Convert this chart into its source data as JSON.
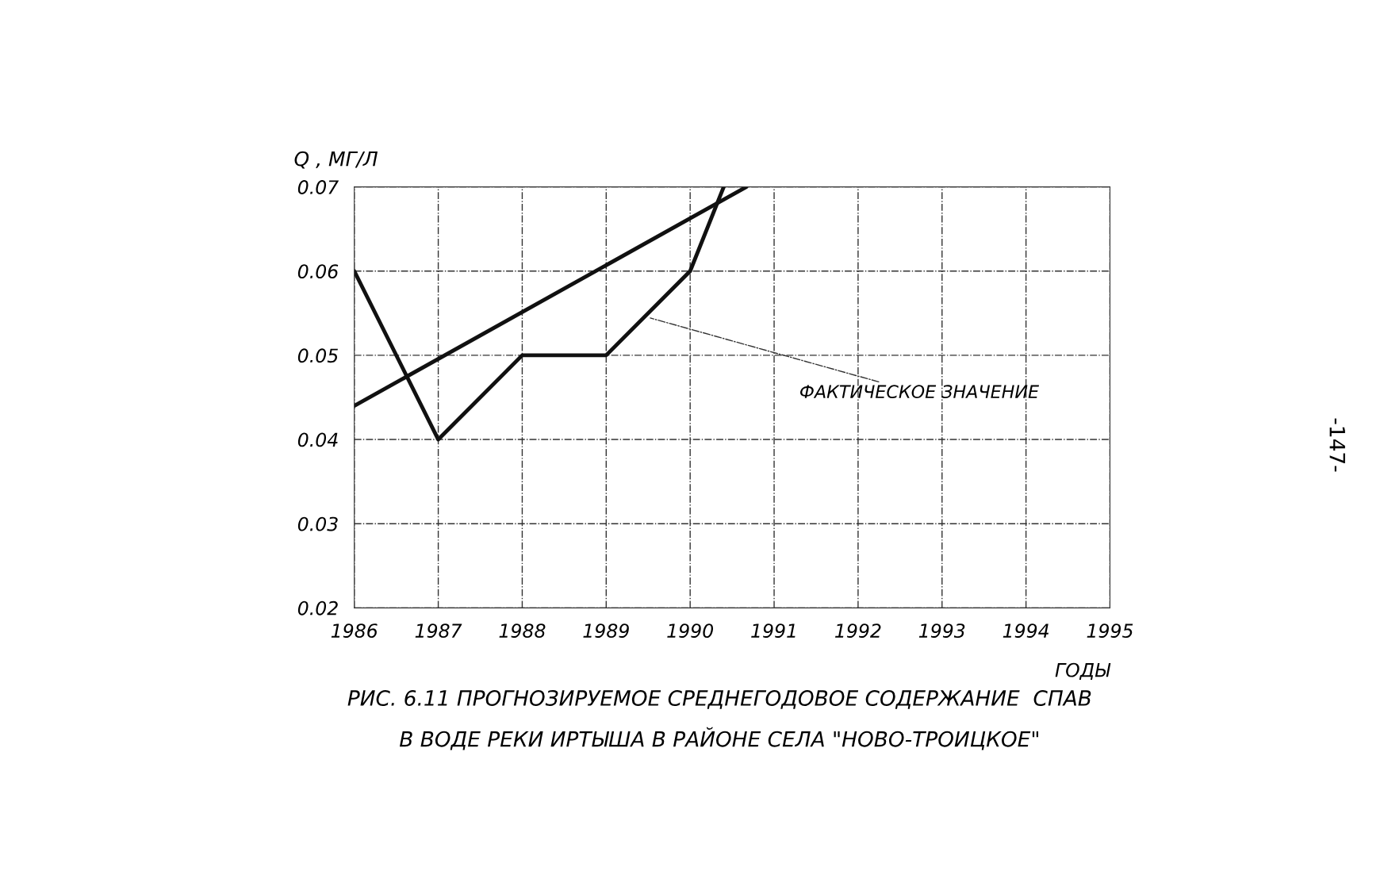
{
  "chart_data": {
    "type": "line",
    "title": "РИС. 6.11 ПРОГНОЗИРУЕМОЕ СРЕДНЕГОДОВОЕ СОДЕРЖАНИЕ  СПАВ\nВ ВОДЕ РЕКИ ИРТЫША В РАЙОНЕ СЕЛА \"НОВО-ТРОИЦКОЕ\"",
    "xlabel": "ГОДЫ",
    "ylabel": "Q , МГ/Л",
    "series": [
      {
        "color": "#111111",
        "x": [
          1986,
          1990.67
        ],
        "values": [
          0.044,
          0.07
        ]
      },
      {
        "color": "#111111",
        "x": [
          1986,
          1987,
          1988,
          1989,
          1990,
          1990.4
        ],
        "values": [
          0.06,
          0.04,
          0.05,
          0.05,
          0.06,
          0.07
        ]
      }
    ],
    "annotations": [
      {
        "text": "ФАКТИЧЕСКОЕ ЗНАЧЕНИЕ",
        "x": 1989.5,
        "y": 0.0545
      },
      "-147-"
    ],
    "xlim": [
      1986,
      1995
    ],
    "xticks": [
      1986,
      1987,
      1988,
      1989,
      1990,
      1991,
      1992,
      1993,
      1994,
      1995
    ],
    "ylim": [
      0.02,
      0.07
    ],
    "yticks": [
      0.02,
      0.03,
      0.04,
      0.05,
      0.06,
      0.07
    ],
    "grid": true,
    "legend": false,
    "marker": "none",
    "line_style": "solid"
  }
}
